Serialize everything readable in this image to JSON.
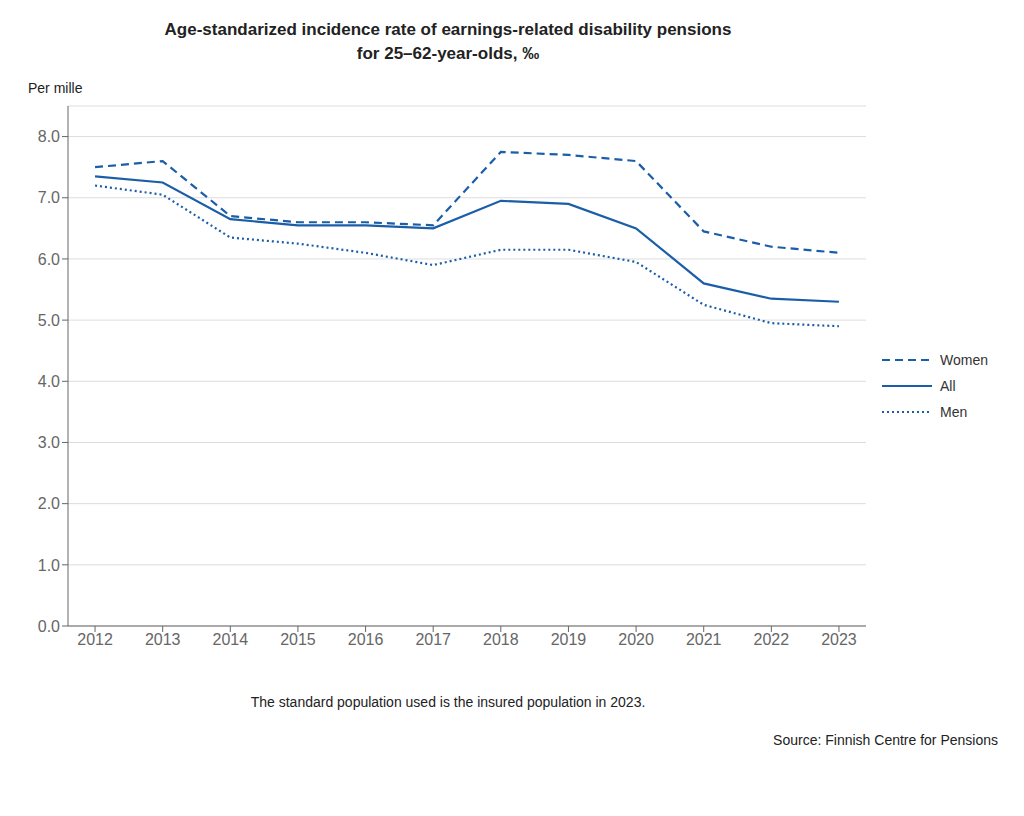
{
  "chart_data": {
    "type": "line",
    "title": "Age-standarized incidence rate of earnings-related disability pensions\nfor 25–62-year-olds, ‰",
    "ylabel": "Per mille",
    "annotations": [
      "The standard population used is the insured population in 2023.",
      "Source: Finnish Centre for Pensions"
    ],
    "x": [
      2012,
      2013,
      2014,
      2015,
      2016,
      2017,
      2018,
      2019,
      2020,
      2021,
      2022,
      2023
    ],
    "series": [
      {
        "name": "Women",
        "color": "#1B5EA8",
        "line_style": "dashed",
        "values": [
          7.5,
          7.6,
          6.7,
          6.6,
          6.6,
          6.55,
          7.75,
          7.7,
          7.6,
          6.45,
          6.2,
          6.1
        ]
      },
      {
        "name": "All",
        "color": "#1B5EA8",
        "line_style": "solid",
        "values": [
          7.35,
          7.25,
          6.65,
          6.55,
          6.55,
          6.5,
          6.95,
          6.9,
          6.5,
          5.6,
          5.35,
          5.3
        ]
      },
      {
        "name": "Men",
        "color": "#1B5EA8",
        "line_style": "dotted",
        "values": [
          7.2,
          7.05,
          6.35,
          6.25,
          6.1,
          5.9,
          6.15,
          6.15,
          5.95,
          5.25,
          4.95,
          4.9
        ]
      }
    ],
    "xlim": [
      2011.6,
      2023.4
    ],
    "xticks": [
      2012,
      2013,
      2014,
      2015,
      2016,
      2017,
      2018,
      2019,
      2020,
      2021,
      2022,
      2023
    ],
    "ylim": [
      0.0,
      8.5
    ],
    "yticks": [
      {
        "value": 0.0,
        "label": "0.0"
      },
      {
        "value": 1.0,
        "label": "1.0"
      },
      {
        "value": 2.0,
        "label": "2.0"
      },
      {
        "value": 3.0,
        "label": "3.0"
      },
      {
        "value": 4.0,
        "label": "4.0"
      },
      {
        "value": 5.0,
        "label": "5.0"
      },
      {
        "value": 6.0,
        "label": "6.0"
      },
      {
        "value": 7.0,
        "label": "7.0"
      },
      {
        "value": 8.0,
        "label": "8.0"
      }
    ],
    "grid": true,
    "legend": "right"
  }
}
